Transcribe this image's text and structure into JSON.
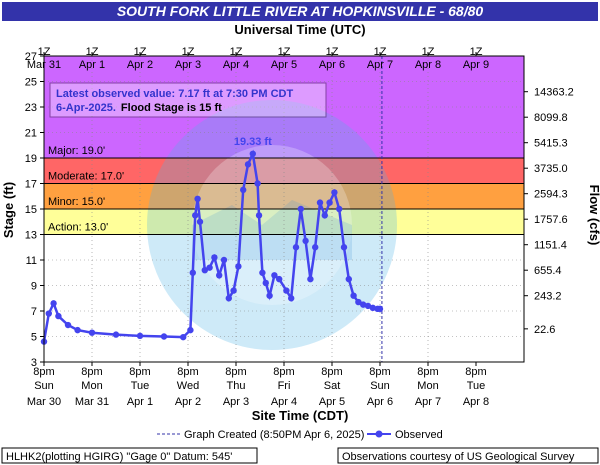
{
  "header": {
    "title": "SOUTH FORK LITTLE RIVER AT HOPKINSVILLE - 68/80"
  },
  "axes": {
    "top_title": "Universal Time (UTC)",
    "bottom_title": "Site Time (CDT)",
    "left_title": "Stage (ft)",
    "right_title": "Flow (cfs)"
  },
  "colors": {
    "title_bar": "#3333aa",
    "major": "#cc66ff",
    "moderate": "#ff6666",
    "minor": "#ffa040",
    "action": "#ffff99",
    "series": "#4444ee",
    "created_line": "#3333aa"
  },
  "latest_box": {
    "line1": "Latest observed value: 7.17 ft at 7:30 PM CDT",
    "line2a": "6-Apr-2025.",
    "line2b": "Flood Stage is 15 ft"
  },
  "peak_label": "19.33 ft",
  "legend": {
    "created": "Graph Created (8:50PM Apr 6, 2025)",
    "observed": "Observed"
  },
  "footer": {
    "left": "HLHK2(plotting HGIRG) \"Gage 0\" Datum: 545'",
    "right": "Observations courtesy of US Geological Survey"
  },
  "chart_data": {
    "type": "line",
    "title": "SOUTH FORK LITTLE RIVER AT HOPKINSVILLE - 68/80",
    "xlabel": "Site Time (CDT)",
    "ylabel": "Stage (ft)",
    "y2label": "Flow (cfs)",
    "x2label": "Universal Time (UTC)",
    "ylim": [
      3,
      27
    ],
    "xlim": [
      "Mar 30 8pm",
      "Apr 9 8pm"
    ],
    "y_ticks": [
      3,
      5,
      7,
      9,
      11,
      13,
      15,
      17,
      19,
      21,
      23,
      25,
      27
    ],
    "flow_ticks": [
      {
        "stage": 5.6,
        "label": "22.6"
      },
      {
        "stage": 8.2,
        "label": "243.2"
      },
      {
        "stage": 10.2,
        "label": "655.4"
      },
      {
        "stage": 12.2,
        "label": "1151.4"
      },
      {
        "stage": 14.2,
        "label": "1757.6"
      },
      {
        "stage": 16.2,
        "label": "2594.3"
      },
      {
        "stage": 18.2,
        "label": "3735.0"
      },
      {
        "stage": 20.2,
        "label": "5415.3"
      },
      {
        "stage": 22.2,
        "label": "8099.8"
      },
      {
        "stage": 24.2,
        "label": "14363.2"
      }
    ],
    "bottom_ticks": [
      {
        "day": 0,
        "l1": "8pm",
        "l2": "Sun",
        "l3": "Mar 30"
      },
      {
        "day": 1,
        "l1": "8pm",
        "l2": "Mon",
        "l3": "Mar 31"
      },
      {
        "day": 2,
        "l1": "8pm",
        "l2": "Tue",
        "l3": "Apr 1"
      },
      {
        "day": 3,
        "l1": "8pm",
        "l2": "Wed",
        "l3": "Apr 2"
      },
      {
        "day": 4,
        "l1": "8pm",
        "l2": "Thu",
        "l3": "Apr 3"
      },
      {
        "day": 5,
        "l1": "8pm",
        "l2": "Fri",
        "l3": "Apr 4"
      },
      {
        "day": 6,
        "l1": "8pm",
        "l2": "Sat",
        "l3": "Apr 5"
      },
      {
        "day": 7,
        "l1": "8pm",
        "l2": "Sun",
        "l3": "Apr 6"
      },
      {
        "day": 8,
        "l1": "8pm",
        "l2": "Mon",
        "l3": "Apr 7"
      },
      {
        "day": 9,
        "l1": "8pm",
        "l2": "Tue",
        "l3": "Apr 8"
      }
    ],
    "top_ticks": [
      {
        "day": 0,
        "l1": "1Z",
        "l2": "Mar 31"
      },
      {
        "day": 1,
        "l1": "1Z",
        "l2": "Apr 1"
      },
      {
        "day": 2,
        "l1": "1Z",
        "l2": "Apr 2"
      },
      {
        "day": 3,
        "l1": "1Z",
        "l2": "Apr 3"
      },
      {
        "day": 4,
        "l1": "1Z",
        "l2": "Apr 4"
      },
      {
        "day": 5,
        "l1": "1Z",
        "l2": "Apr 5"
      },
      {
        "day": 6,
        "l1": "1Z",
        "l2": "Apr 6"
      },
      {
        "day": 7,
        "l1": "1Z",
        "l2": "Apr 7"
      },
      {
        "day": 8,
        "l1": "1Z",
        "l2": "Apr 8"
      },
      {
        "day": 9,
        "l1": "1Z",
        "l2": "Apr 9"
      }
    ],
    "flood_categories": [
      {
        "name": "Major",
        "label": "Major: 19.0'",
        "from": 19,
        "to": 27
      },
      {
        "name": "Moderate",
        "label": "Moderate: 17.0'",
        "from": 17,
        "to": 19
      },
      {
        "name": "Minor",
        "label": "Minor: 15.0'",
        "from": 15,
        "to": 17
      },
      {
        "name": "Action",
        "label": "Action: 13.0'",
        "from": 13,
        "to": 15
      }
    ],
    "graph_created_day": 7.04,
    "series": [
      {
        "name": "Observed",
        "x_unit": "days after Mar 30 8pm CDT",
        "x": [
          0,
          0.1,
          0.2,
          0.3,
          0.5,
          0.7,
          1.0,
          1.5,
          2.0,
          2.5,
          2.9,
          3.05,
          3.1,
          3.15,
          3.2,
          3.25,
          3.35,
          3.45,
          3.55,
          3.65,
          3.75,
          3.85,
          3.95,
          4.05,
          4.15,
          4.25,
          4.35,
          4.45,
          4.48,
          4.55,
          4.62,
          4.7,
          4.8,
          4.9,
          5.05,
          5.15,
          5.25,
          5.35,
          5.45,
          5.55,
          5.65,
          5.75,
          5.85,
          5.95,
          6.05,
          6.15,
          6.25,
          6.35,
          6.45,
          6.55,
          6.65,
          6.75,
          6.85,
          6.95,
          7.0
        ],
        "y": [
          4.6,
          6.8,
          7.6,
          6.6,
          5.9,
          5.5,
          5.3,
          5.15,
          5.05,
          5.0,
          4.95,
          5.5,
          10.0,
          14.5,
          15.8,
          14.0,
          10.2,
          10.4,
          11.2,
          9.8,
          11.0,
          8.0,
          8.6,
          10.5,
          16.5,
          18.5,
          19.33,
          17.0,
          14.5,
          10.0,
          9.2,
          8.2,
          9.8,
          9.5,
          8.6,
          8.0,
          12.0,
          15.0,
          12.5,
          9.5,
          12.0,
          15.5,
          14.5,
          15.5,
          16.3,
          15.0,
          12.0,
          9.5,
          8.2,
          7.7,
          7.5,
          7.4,
          7.25,
          7.17,
          7.17
        ]
      }
    ]
  }
}
